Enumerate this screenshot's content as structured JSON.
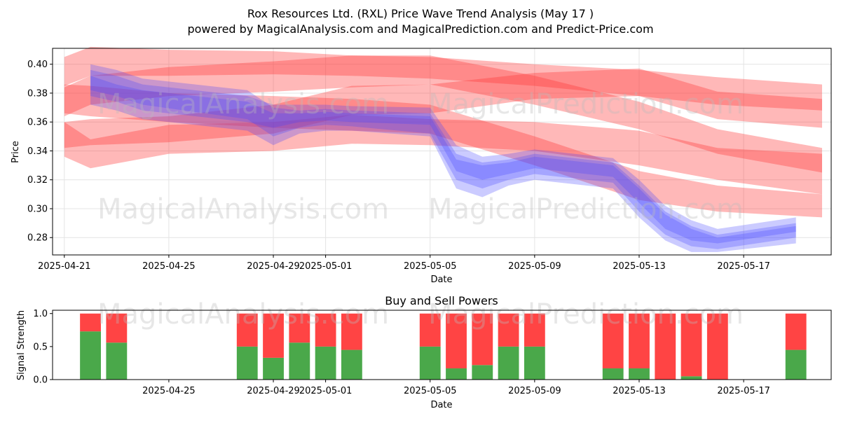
{
  "figure": {
    "title": "Rox Resources Ltd. (RXL) Price Wave Trend Analysis (May 17 )",
    "subtitle": "powered by MagicalAnalysis.com and MagicalPrediction.com and Predict-Price.com",
    "watermarks": [
      "MagicalAnalysis.com",
      "MagicalPrediction.com"
    ]
  },
  "chart_data": [
    {
      "type": "area",
      "title": "",
      "xlabel": "Date",
      "ylabel": "Price",
      "xlim": [
        "2025-04-21",
        "2025-05-20"
      ],
      "ylim": [
        0.268,
        0.411
      ],
      "yticks": [
        "0.28",
        "0.30",
        "0.32",
        "0.34",
        "0.36",
        "0.38",
        "0.40"
      ],
      "xticks": [
        "2025-04-21",
        "2025-04-25",
        "2025-04-29",
        "2025-05-01",
        "2025-05-05",
        "2025-05-09",
        "2025-05-13",
        "2025-05-17"
      ],
      "grid": true,
      "colors": {
        "historical_band": "#4444ff",
        "forecast_band": "#ff3333"
      },
      "historical_bands": [
        {
          "dates": [
            "2025-04-22",
            "2025-04-23",
            "2025-04-24",
            "2025-04-28",
            "2025-04-29",
            "2025-04-30",
            "2025-05-01",
            "2025-05-02",
            "2025-05-05",
            "2025-05-06",
            "2025-05-07",
            "2025-05-08",
            "2025-05-09",
            "2025-05-12",
            "2025-05-13",
            "2025-05-14",
            "2025-05-15",
            "2025-05-16",
            "2025-05-19"
          ],
          "upper": [
            0.4,
            0.396,
            0.39,
            0.382,
            0.37,
            0.368,
            0.369,
            0.368,
            0.366,
            0.338,
            0.332,
            0.334,
            0.338,
            0.332,
            0.316,
            0.298,
            0.288,
            0.282,
            0.29
          ],
          "lower": [
            0.382,
            0.378,
            0.372,
            0.362,
            0.35,
            0.356,
            0.358,
            0.357,
            0.352,
            0.32,
            0.314,
            0.32,
            0.324,
            0.318,
            0.298,
            0.282,
            0.274,
            0.272,
            0.28
          ]
        },
        {
          "dates": [
            "2025-04-22",
            "2025-04-23",
            "2025-04-24",
            "2025-04-28",
            "2025-04-29",
            "2025-04-30",
            "2025-05-01",
            "2025-05-02",
            "2025-05-05",
            "2025-05-06",
            "2025-05-07",
            "2025-05-08",
            "2025-05-09",
            "2025-05-12",
            "2025-05-13",
            "2025-05-14",
            "2025-05-15",
            "2025-05-16",
            "2025-05-19"
          ],
          "upper": [
            0.396,
            0.392,
            0.386,
            0.378,
            0.372,
            0.372,
            0.372,
            0.371,
            0.37,
            0.344,
            0.336,
            0.338,
            0.341,
            0.335,
            0.32,
            0.302,
            0.292,
            0.286,
            0.294
          ],
          "lower": [
            0.378,
            0.374,
            0.368,
            0.36,
            0.356,
            0.36,
            0.361,
            0.36,
            0.358,
            0.326,
            0.32,
            0.324,
            0.328,
            0.322,
            0.304,
            0.286,
            0.278,
            0.276,
            0.284
          ]
        },
        {
          "dates": [
            "2025-04-22",
            "2025-04-23",
            "2025-04-24",
            "2025-04-28",
            "2025-04-29",
            "2025-04-30",
            "2025-05-01",
            "2025-05-02",
            "2025-05-05",
            "2025-05-06",
            "2025-05-07",
            "2025-05-08",
            "2025-05-09",
            "2025-05-12",
            "2025-05-13",
            "2025-05-14",
            "2025-05-15",
            "2025-05-16",
            "2025-05-19"
          ],
          "upper": [
            0.392,
            0.386,
            0.382,
            0.374,
            0.366,
            0.366,
            0.367,
            0.366,
            0.364,
            0.334,
            0.33,
            0.332,
            0.336,
            0.33,
            0.314,
            0.296,
            0.286,
            0.28,
            0.288
          ],
          "lower": [
            0.372,
            0.368,
            0.362,
            0.354,
            0.344,
            0.352,
            0.354,
            0.354,
            0.35,
            0.314,
            0.308,
            0.316,
            0.32,
            0.314,
            0.294,
            0.278,
            0.27,
            0.27,
            0.276
          ]
        }
      ],
      "forecast_bands": [
        {
          "dates": [
            "2025-04-21",
            "2025-04-22",
            "2025-04-25",
            "2025-04-29",
            "2025-05-02",
            "2025-05-05",
            "2025-05-09",
            "2025-05-13",
            "2025-05-16",
            "2025-05-20"
          ],
          "upper": [
            0.405,
            0.412,
            0.41,
            0.409,
            0.406,
            0.405,
            0.4,
            0.396,
            0.391,
            0.386
          ],
          "lower": [
            0.385,
            0.392,
            0.392,
            0.393,
            0.392,
            0.39,
            0.385,
            0.378,
            0.372,
            0.368
          ]
        },
        {
          "dates": [
            "2025-04-21",
            "2025-04-22",
            "2025-04-25",
            "2025-04-29",
            "2025-05-02",
            "2025-05-05",
            "2025-05-09",
            "2025-05-13",
            "2025-05-16",
            "2025-05-20"
          ],
          "upper": [
            0.384,
            0.392,
            0.398,
            0.402,
            0.406,
            0.406,
            0.392,
            0.374,
            0.355,
            0.342
          ],
          "lower": [
            0.364,
            0.372,
            0.378,
            0.381,
            0.384,
            0.386,
            0.372,
            0.355,
            0.338,
            0.325
          ]
        },
        {
          "dates": [
            "2025-04-21",
            "2025-04-22",
            "2025-04-25",
            "2025-04-29",
            "2025-05-02",
            "2025-05-05",
            "2025-05-09",
            "2025-05-13",
            "2025-05-16",
            "2025-05-20"
          ],
          "upper": [
            0.36,
            0.362,
            0.364,
            0.372,
            0.385,
            0.386,
            0.394,
            0.397,
            0.381,
            0.376
          ],
          "lower": [
            0.342,
            0.344,
            0.346,
            0.352,
            0.365,
            0.366,
            0.376,
            0.378,
            0.362,
            0.356
          ]
        },
        {
          "dates": [
            "2025-04-21",
            "2025-04-22",
            "2025-04-25",
            "2025-04-29",
            "2025-05-02",
            "2025-05-05",
            "2025-05-09",
            "2025-05-13",
            "2025-05-16",
            "2025-05-20"
          ],
          "upper": [
            0.36,
            0.348,
            0.358,
            0.36,
            0.365,
            0.362,
            0.36,
            0.354,
            0.342,
            0.338
          ],
          "lower": [
            0.336,
            0.328,
            0.338,
            0.34,
            0.345,
            0.344,
            0.34,
            0.33,
            0.32,
            0.31
          ]
        },
        {
          "dates": [
            "2025-04-21",
            "2025-04-22",
            "2025-04-25",
            "2025-04-29",
            "2025-05-02",
            "2025-05-05",
            "2025-05-09",
            "2025-05-13",
            "2025-05-16",
            "2025-05-20"
          ],
          "upper": [
            0.386,
            0.385,
            0.38,
            0.378,
            0.376,
            0.372,
            0.35,
            0.326,
            0.316,
            0.31
          ],
          "lower": [
            0.366,
            0.364,
            0.36,
            0.356,
            0.354,
            0.352,
            0.33,
            0.306,
            0.298,
            0.294
          ]
        }
      ]
    },
    {
      "type": "bar",
      "title": "Buy and Sell Powers",
      "xlabel": "Date",
      "ylabel": "Signal Strength",
      "xlim": [
        "2025-04-21",
        "2025-05-20"
      ],
      "ylim": [
        0.0,
        1.05
      ],
      "yticks": [
        "0.0",
        "0.5",
        "1.0"
      ],
      "xticks": [
        "2025-04-25",
        "2025-04-29",
        "2025-05-01",
        "2025-05-05",
        "2025-05-09",
        "2025-05-13",
        "2025-05-17"
      ],
      "colors": {
        "buy": "#4aa84a",
        "sell": "#ff4444"
      },
      "series": [
        {
          "name": "Buy",
          "values": [
            0.73,
            0.56,
            0.5,
            0.33,
            0.56,
            0.5,
            0.45,
            0.5,
            0.17,
            0.22,
            0.5,
            0.5,
            0.17,
            0.17,
            0.0,
            0.05,
            0.0,
            0.45
          ]
        },
        {
          "name": "Sell",
          "values": [
            0.27,
            0.44,
            0.5,
            0.67,
            0.44,
            0.5,
            0.55,
            0.5,
            0.83,
            0.78,
            0.5,
            0.5,
            0.83,
            0.83,
            1.0,
            0.95,
            1.0,
            0.55
          ]
        }
      ],
      "categories": [
        "2025-04-22",
        "2025-04-23",
        "2025-04-28",
        "2025-04-29",
        "2025-04-30",
        "2025-05-01",
        "2025-05-02",
        "2025-05-05",
        "2025-05-06",
        "2025-05-07",
        "2025-05-08",
        "2025-05-09",
        "2025-05-12",
        "2025-05-13",
        "2025-05-14",
        "2025-05-15",
        "2025-05-16",
        "2025-05-19"
      ]
    }
  ]
}
